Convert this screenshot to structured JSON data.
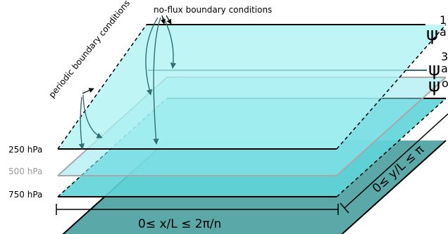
{
  "annotations": {
    "no_flux": "no-flux boundary conditions",
    "periodic": "periodic boundary conditions"
  },
  "levels": {
    "hpa_250": "250 hPa",
    "hpa_500": "500 hPa",
    "hpa_750": "750 hPa"
  },
  "psi": {
    "symbol": "ψ",
    "top_sup": "1",
    "top_sub": "a",
    "mid_sup": "3",
    "mid_sub": "a",
    "bottom_sub": "o"
  },
  "axes": {
    "x_range": "0≤ x/L ≤ 2π/n",
    "y_range": "0≤ y/L ≤ π"
  },
  "colors": {
    "top_layer": "#aaf2f2",
    "upper_layer": "#8fe8ee",
    "lower_layer": "#5fd4d8",
    "bottom_layer": "#5aa8a8",
    "arrow": "#2f6e74",
    "grey_line": "#a8a8a8"
  }
}
